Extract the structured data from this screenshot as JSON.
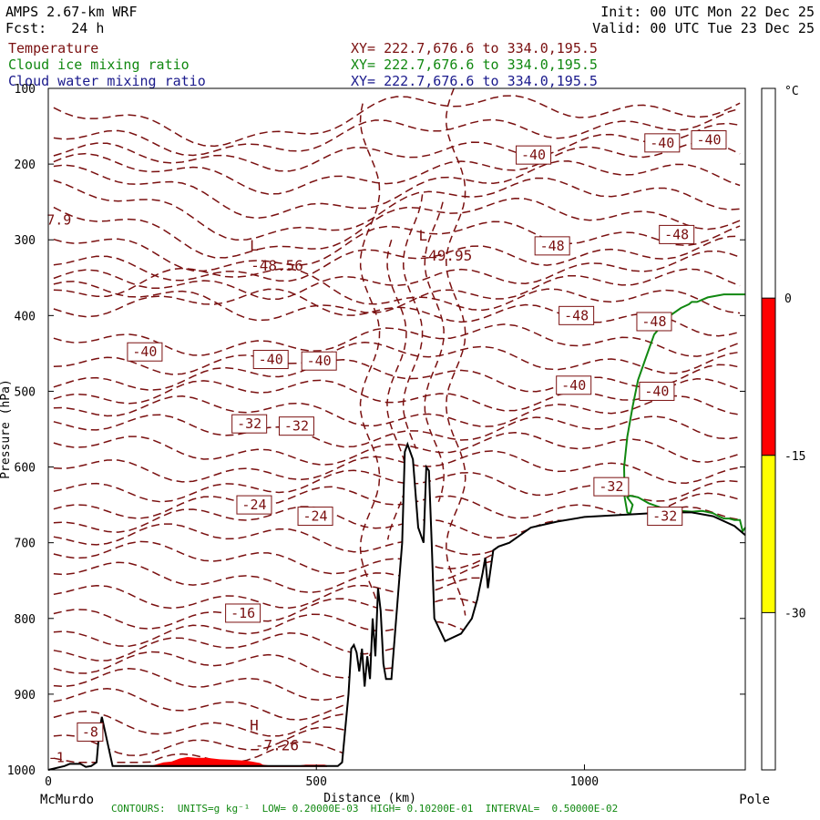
{
  "header": {
    "model": "AMPS 2.67-km WRF",
    "fcst": "Fcst:   24 h",
    "init": "Init: 00 UTC Mon 22 Dec 25",
    "valid": "Valid: 00 UTC Tue 23 Dec 25",
    "fields": [
      {
        "name": "Temperature",
        "xy": "XY= 222.7,676.6 to 334.0,195.5"
      },
      {
        "name": "Cloud ice mixing ratio",
        "xy": "XY= 222.7,676.6 to 334.0,195.5"
      },
      {
        "name": "Cloud water mixing ratio",
        "xy": "XY= 222.7,676.6 to 334.0,195.5"
      }
    ]
  },
  "footer": "CONTOURS:  UNITS=g kg⁻¹  LOW= 0.20000E-03  HIGH= 0.10200E-01  INTERVAL=  0.50000E-02",
  "colors": {
    "temperature": "#7a1010",
    "cloud_ice": "#118811",
    "cloud_water": "#1a1a8c",
    "cloud_water_fill": "#ff0000",
    "terrain": "#000000",
    "scale_red": "#ff0000",
    "scale_yellow": "#ffff00"
  },
  "chart_data": {
    "type": "line",
    "xlabel": "Distance (km)",
    "ylabel": "Pressure (hPa)",
    "xlim": [
      0,
      1300
    ],
    "ylim": [
      1000,
      100
    ],
    "x_ticks": [
      "0",
      "500",
      "1000"
    ],
    "x_tick_values": [
      0,
      500,
      1000
    ],
    "x_end_labels": {
      "left": "McMurdo",
      "right": "Pole"
    },
    "y_ticks": [
      "100",
      "200",
      "300",
      "400",
      "500",
      "600",
      "700",
      "800",
      "900",
      "1000"
    ],
    "y_tick_values": [
      100,
      200,
      300,
      400,
      500,
      600,
      700,
      800,
      900,
      1000
    ],
    "color_scale": {
      "unit": "°C",
      "levels": [
        "0",
        "-15",
        "-30"
      ],
      "bands": [
        {
          "from": 0,
          "to": -15,
          "color": "#ff0000"
        },
        {
          "from": -15,
          "to": -30,
          "color": "#ffff00"
        }
      ]
    },
    "terrain": {
      "x": [
        0,
        30,
        40,
        60,
        70,
        80,
        90,
        95,
        100,
        120,
        180,
        300,
        400,
        450,
        500,
        520,
        540,
        548,
        560,
        565,
        570,
        575,
        580,
        585,
        590,
        595,
        600,
        605,
        610,
        615,
        620,
        625,
        630,
        640,
        660,
        665,
        670,
        680,
        690,
        700,
        705,
        710,
        715,
        720,
        740,
        770,
        790,
        800,
        810,
        815,
        820,
        830,
        840,
        860,
        880,
        900,
        950,
        1000,
        1050,
        1100,
        1150,
        1200,
        1240,
        1280,
        1300
      ],
      "y": [
        1000,
        995,
        992,
        992,
        996,
        995,
        990,
        950,
        930,
        995,
        995,
        995,
        995,
        995,
        995,
        995,
        995,
        990,
        900,
        840,
        835,
        845,
        870,
        840,
        890,
        850,
        880,
        800,
        850,
        760,
        790,
        860,
        880,
        880,
        700,
        580,
        570,
        590,
        680,
        700,
        600,
        605,
        700,
        800,
        830,
        820,
        800,
        775,
        740,
        720,
        760,
        710,
        705,
        700,
        690,
        680,
        672,
        666,
        664,
        662,
        660,
        660,
        665,
        678,
        690
      ]
    },
    "temperature_contour_labels": [
      {
        "text": "-40",
        "x": 905,
        "p": 188
      },
      {
        "text": "-40",
        "x": 1145,
        "p": 172
      },
      {
        "text": "-40",
        "x": 1232,
        "p": 168
      },
      {
        "text": "-48",
        "x": 940,
        "p": 308
      },
      {
        "text": "-48",
        "x": 1172,
        "p": 293
      },
      {
        "text": "-48",
        "x": 985,
        "p": 400
      },
      {
        "text": "-48",
        "x": 1130,
        "p": 408
      },
      {
        "text": "-40",
        "x": 180,
        "p": 448
      },
      {
        "text": "-40",
        "x": 415,
        "p": 458
      },
      {
        "text": "-40",
        "x": 505,
        "p": 460
      },
      {
        "text": "-40",
        "x": 980,
        "p": 492
      },
      {
        "text": "-40",
        "x": 1135,
        "p": 500
      },
      {
        "text": "-32",
        "x": 375,
        "p": 543
      },
      {
        "text": "-32",
        "x": 463,
        "p": 546
      },
      {
        "text": "-32",
        "x": 1050,
        "p": 626
      },
      {
        "text": "-32",
        "x": 1150,
        "p": 665
      },
      {
        "text": "-24",
        "x": 384,
        "p": 650
      },
      {
        "text": "-24",
        "x": 498,
        "p": 665
      },
      {
        "text": "-16",
        "x": 363,
        "p": 793
      },
      {
        "text": "-8",
        "x": 78,
        "p": 950
      }
    ],
    "extrema": [
      {
        "type": "L",
        "value": "-48.56",
        "x": 435,
        "p": 338
      },
      {
        "type": "L",
        "value": "-49.95",
        "x": 750,
        "p": 325
      },
      {
        "type": "H",
        "value": "-7.26",
        "x": 435,
        "p": 972
      }
    ],
    "edge_labels": [
      {
        "text": "7.9",
        "x": 20,
        "p": 280
      },
      {
        "text": "-1",
        "x": 15,
        "p": 990
      }
    ],
    "cloud_ice_contour": {
      "x": [
        1300,
        1260,
        1230,
        1210,
        1200,
        1195,
        1180,
        1160,
        1130,
        1115,
        1100,
        1090,
        1080,
        1074,
        1075,
        1080,
        1085,
        1090,
        1080,
        1085,
        1100,
        1120,
        1140,
        1160,
        1180,
        1200,
        1220,
        1240,
        1250,
        1260,
        1270,
        1280,
        1290,
        1295,
        1300
      ],
      "y": [
        372,
        372,
        376,
        382,
        382,
        385,
        390,
        400,
        425,
        455,
        485,
        520,
        560,
        600,
        640,
        660,
        662,
        650,
        640,
        638,
        640,
        648,
        653,
        657,
        658,
        659,
        658,
        661,
        665,
        668,
        668,
        670,
        670,
        685,
        680
      ]
    },
    "cloud_water_fill": {
      "x": [
        190,
        200,
        215,
        230,
        245,
        260,
        275,
        295,
        320,
        350,
        370,
        380,
        388,
        395,
        400,
        410,
        420,
        440,
        460,
        480,
        500,
        515,
        520,
        520,
        190
      ],
      "y": [
        995,
        993,
        990,
        989,
        985,
        983,
        984,
        984,
        986,
        987,
        988,
        989,
        990,
        991,
        993,
        994,
        995,
        995,
        995,
        993,
        993,
        993,
        994,
        996,
        996
      ]
    }
  }
}
